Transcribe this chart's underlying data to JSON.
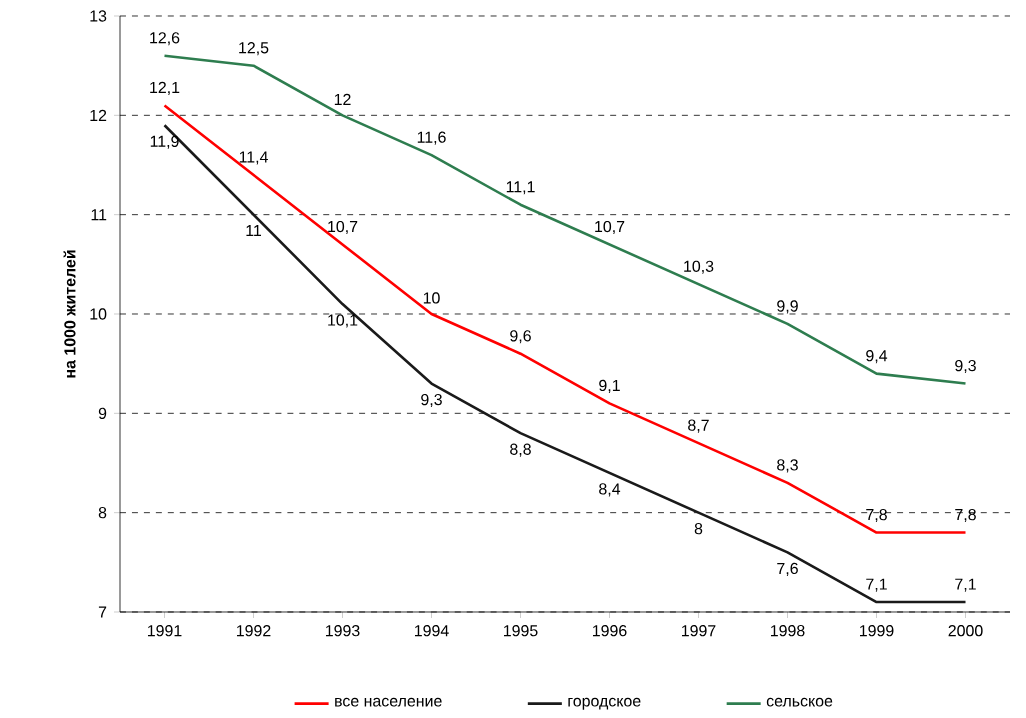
{
  "chart_data": {
    "type": "line",
    "ylabel": "на 1000 жителей",
    "categories": [
      "1991",
      "1992",
      "1993",
      "1994",
      "1995",
      "1996",
      "1997",
      "1998",
      "1999",
      "2000"
    ],
    "series": [
      {
        "name": "все население",
        "color": "#ff0000",
        "values": [
          12.1,
          11.4,
          10.7,
          10,
          9.6,
          9.1,
          8.7,
          8.3,
          7.8,
          7.8
        ],
        "value_labels": [
          "12,1",
          "11,4",
          "10,7",
          "10",
          "9,6",
          "9,1",
          "8,7",
          "8,3",
          "7,8",
          "7,8"
        ]
      },
      {
        "name": "городское",
        "color": "#1a1a1a",
        "values": [
          11.9,
          11,
          10.1,
          9.3,
          8.8,
          8.4,
          8,
          7.6,
          7.1,
          7.1
        ],
        "value_labels": [
          "11,9",
          "11",
          "10,1",
          "9,3",
          "8,8",
          "8,4",
          "8",
          "7,6",
          "7,1",
          "7,1"
        ]
      },
      {
        "name": "сельское",
        "color": "#2e7d4f",
        "values": [
          12.6,
          12.5,
          12,
          11.6,
          11.1,
          10.7,
          10.3,
          9.9,
          9.4,
          9.3
        ],
        "value_labels": [
          "12,6",
          "12,5",
          "12",
          "11,6",
          "11,1",
          "10,7",
          "10,3",
          "9,9",
          "9,4",
          "9,3"
        ]
      }
    ],
    "ylim": [
      7,
      13
    ],
    "yticks": [
      7,
      8,
      9,
      10,
      11,
      12,
      13
    ],
    "grid": "y",
    "legend": "bottom",
    "marker": "none",
    "line_style": "solid"
  }
}
